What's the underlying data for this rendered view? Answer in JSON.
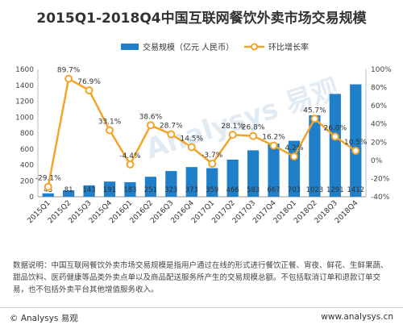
{
  "chart_data": {
    "type": "bar",
    "title": "2015Q1-2018Q4中国互联网餐饮外卖市场交易规模",
    "categories": [
      "2015Q1",
      "2015Q2",
      "2015Q3",
      "2015Q4",
      "2016Q1",
      "2016Q2",
      "2016Q3",
      "2016Q4",
      "2017Q1",
      "2017Q2",
      "2017Q3",
      "2017Q4",
      "2018Q1",
      "2018Q2",
      "2018Q3",
      "2018Q4"
    ],
    "series": [
      {
        "name": "交易规模（亿元 人民币）",
        "type": "bar",
        "axis": "left",
        "color": "#1f7fc8",
        "values": [
          43,
          81,
          143,
          191,
          183,
          251,
          323,
          373,
          359,
          466,
          583,
          667,
          703,
          1023,
          1291,
          1412
        ],
        "labels": [
          "43",
          "81",
          "143",
          "191",
          "183",
          "251",
          "323",
          "373",
          "359",
          "466",
          "583",
          "667",
          "703",
          "1023",
          "1291",
          "1412"
        ]
      },
      {
        "name": "环比增长率",
        "type": "line",
        "axis": "right",
        "color": "#f2a52a",
        "values": [
          -29.1,
          89.7,
          76.9,
          33.1,
          -4.4,
          38.6,
          28.7,
          14.5,
          -3.7,
          28.1,
          26.8,
          16.2,
          4.2,
          45.7,
          26.0,
          10.5
        ],
        "labels": [
          "-29.1%",
          "89.7%",
          "76.9%",
          "33.1%",
          "-4.4%",
          "38.6%",
          "28.7%",
          "14.5%",
          "-3.7%",
          "28.1%",
          "26.8%",
          "16.2%",
          "4.2%",
          "45.7%",
          "26.0%",
          "10.5%"
        ]
      }
    ],
    "ylim_left": [
      0,
      1600
    ],
    "yticks_left": [
      "0",
      "200",
      "400",
      "600",
      "800",
      "1000",
      "1200",
      "1400",
      "1600"
    ],
    "ylim_right": [
      -40,
      100
    ],
    "yticks_right": [
      "-40%",
      "-20%",
      "0%",
      "20%",
      "40%",
      "60%",
      "80%",
      "100%"
    ],
    "legend_position": "top",
    "grid": false
  },
  "watermark": "Analysys 易观",
  "note": "数据说明：中国互联网餐饮外卖市场交易规模是指用户通过在线的形式进行餐饮正餐、宵夜、鲜花、生鲜果蔬、甜品饮料、医药健康等品类外卖点单以及商品配送服务所产生的交易规模总额。不包括取消订单和退款订单交易，也不包括外卖平台其他增值服务收入。",
  "footer": {
    "brand": "© Analysys 易观",
    "website": "www.analysys.cn"
  }
}
